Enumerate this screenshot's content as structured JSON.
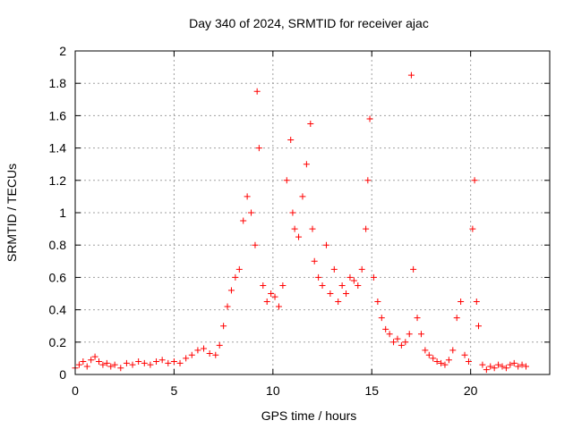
{
  "chart_data": {
    "type": "scatter",
    "title": "Day 340 of 2024, SRMTID for receiver ajac",
    "xlabel": "GPS time / hours",
    "ylabel": "SRMTID / TECUs",
    "xlim": [
      0,
      24
    ],
    "ylim": [
      0,
      2
    ],
    "xticks": [
      0,
      5,
      10,
      15,
      20
    ],
    "yticks": [
      0,
      0.2,
      0.4,
      0.6,
      0.8,
      1,
      1.2,
      1.4,
      1.6,
      1.8,
      2
    ],
    "ytick_labels": [
      "0",
      "0.2",
      "0.4",
      "0.6",
      "0.8",
      "1",
      "1.2",
      "1.4",
      "1.6",
      "1.8",
      "2"
    ],
    "grid": true,
    "marker": "+",
    "marker_color": "#ff0000",
    "series": [
      {
        "name": "SRMTID",
        "x": [
          0.0,
          0.2,
          0.4,
          0.6,
          0.8,
          1.0,
          1.2,
          1.4,
          1.6,
          1.8,
          2.0,
          2.3,
          2.6,
          2.9,
          3.2,
          3.5,
          3.8,
          4.1,
          4.4,
          4.7,
          5.0,
          5.3,
          5.6,
          5.9,
          6.2,
          6.5,
          6.8,
          7.1,
          7.3,
          7.5,
          7.7,
          7.9,
          8.1,
          8.3,
          8.5,
          8.7,
          8.9,
          9.1,
          9.2,
          9.3,
          9.5,
          9.7,
          9.9,
          10.1,
          10.3,
          10.5,
          10.7,
          10.9,
          11.0,
          11.1,
          11.3,
          11.5,
          11.7,
          11.9,
          12.0,
          12.1,
          12.3,
          12.5,
          12.7,
          12.9,
          13.1,
          13.3,
          13.5,
          13.7,
          13.9,
          14.1,
          14.3,
          14.5,
          14.7,
          14.8,
          14.9,
          15.1,
          15.3,
          15.5,
          15.7,
          15.9,
          16.1,
          16.3,
          16.5,
          16.7,
          16.9,
          17.0,
          17.1,
          17.3,
          17.5,
          17.7,
          17.9,
          18.1,
          18.3,
          18.5,
          18.7,
          18.9,
          19.1,
          19.3,
          19.5,
          19.7,
          19.9,
          20.1,
          20.2,
          20.3,
          20.4,
          20.6,
          20.8,
          21.0,
          21.2,
          21.4,
          21.6,
          21.8,
          22.0,
          22.2,
          22.4,
          22.6,
          22.8
        ],
        "y": [
          0.04,
          0.06,
          0.08,
          0.05,
          0.09,
          0.11,
          0.08,
          0.06,
          0.07,
          0.05,
          0.06,
          0.04,
          0.07,
          0.06,
          0.08,
          0.07,
          0.06,
          0.08,
          0.09,
          0.07,
          0.08,
          0.07,
          0.1,
          0.12,
          0.15,
          0.16,
          0.13,
          0.12,
          0.18,
          0.3,
          0.42,
          0.52,
          0.6,
          0.65,
          0.95,
          1.1,
          1.0,
          0.8,
          1.75,
          1.4,
          0.55,
          0.45,
          0.5,
          0.48,
          0.42,
          0.55,
          1.2,
          1.45,
          1.0,
          0.9,
          0.85,
          1.1,
          1.3,
          1.55,
          0.9,
          0.7,
          0.6,
          0.55,
          0.8,
          0.5,
          0.65,
          0.45,
          0.55,
          0.5,
          0.6,
          0.58,
          0.55,
          0.65,
          0.9,
          1.2,
          1.58,
          0.6,
          0.45,
          0.35,
          0.28,
          0.25,
          0.2,
          0.22,
          0.18,
          0.2,
          0.25,
          1.85,
          0.65,
          0.35,
          0.25,
          0.15,
          0.12,
          0.1,
          0.08,
          0.07,
          0.06,
          0.09,
          0.15,
          0.35,
          0.45,
          0.12,
          0.08,
          0.9,
          1.2,
          0.45,
          0.3,
          0.06,
          0.03,
          0.05,
          0.04,
          0.06,
          0.05,
          0.04,
          0.06,
          0.07,
          0.05,
          0.06,
          0.05
        ]
      }
    ]
  }
}
